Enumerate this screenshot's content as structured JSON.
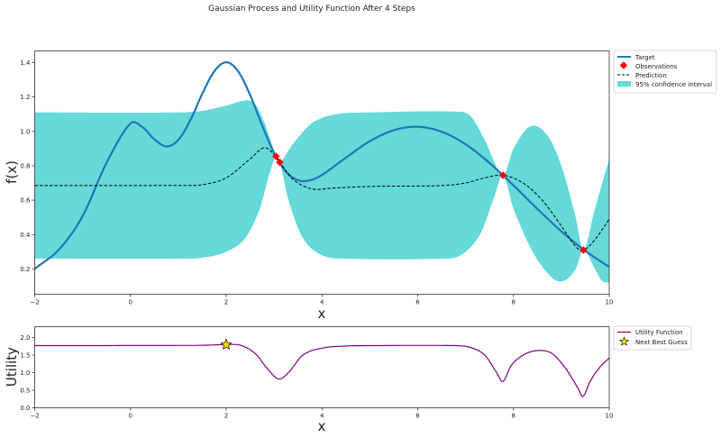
{
  "figure_title": "Gaussian Process and Utility Function After 4 Steps",
  "colors": {
    "target": "#1f77b4",
    "observations": "#ff0000",
    "prediction": "#000000",
    "confidence": "#66d9d9",
    "utility": "#800080",
    "next_guess": "#ffd700"
  },
  "chart_data": [
    {
      "type": "line",
      "title": "",
      "xlabel": "x",
      "ylabel": "f(x)",
      "xlim": [
        -2,
        10
      ],
      "ylim": [
        0.053,
        1.468
      ],
      "xticks": [
        -2,
        0,
        2,
        4,
        6,
        8,
        10
      ],
      "yticks": [
        0.2,
        0.4,
        0.6,
        0.8,
        1.0,
        1.2,
        1.4
      ],
      "ytick_labels": [
        "0.2",
        "0.4",
        "0.6",
        "0.8",
        "1.0",
        "1.2",
        "1.4"
      ],
      "grid": false,
      "legend_placement": "outside-top-right",
      "legend": [
        "Target",
        "Observations",
        "Prediction",
        "95% confidence interval"
      ],
      "target": {
        "x": [
          -2,
          -1.5,
          -1,
          -0.5,
          0,
          0.25,
          0.5,
          0.75,
          1,
          1.25,
          1.5,
          1.75,
          2,
          2.25,
          2.5,
          2.75,
          3,
          3.25,
          3.5,
          3.75,
          4,
          4.5,
          5,
          5.5,
          6,
          6.5,
          7,
          7.5,
          8,
          8.5,
          9,
          9.5,
          10
        ],
        "y": [
          0.202,
          0.311,
          0.507,
          0.817,
          1.046,
          1.025,
          0.954,
          0.913,
          0.95,
          1.065,
          1.219,
          1.349,
          1.402,
          1.349,
          1.211,
          1.035,
          0.875,
          0.766,
          0.716,
          0.716,
          0.747,
          0.847,
          0.943,
          1.007,
          1.027,
          0.998,
          0.925,
          0.816,
          0.686,
          0.549,
          0.419,
          0.305,
          0.212
        ]
      },
      "observations": {
        "x": [
          3.04,
          3.12,
          7.78,
          9.46
        ],
        "y": [
          0.855,
          0.82,
          0.745,
          0.31
        ]
      },
      "prediction": {
        "x": [
          -2,
          1,
          1.5,
          2,
          2.5,
          2.8,
          3.04,
          3.12,
          3.4,
          3.8,
          4.2,
          5,
          6.5,
          7,
          7.4,
          7.78,
          8.2,
          8.6,
          9.0,
          9.3,
          9.46,
          9.7,
          10
        ],
        "y": [
          0.685,
          0.686,
          0.69,
          0.73,
          0.84,
          0.905,
          0.855,
          0.82,
          0.72,
          0.665,
          0.67,
          0.68,
          0.685,
          0.7,
          0.73,
          0.745,
          0.7,
          0.6,
          0.45,
          0.33,
          0.31,
          0.37,
          0.49
        ]
      },
      "confidence_upper": {
        "x": [
          -2,
          1,
          1.5,
          2,
          2.4,
          2.6,
          2.8,
          3.04,
          3.12,
          3.4,
          3.8,
          4.3,
          5,
          6.8,
          7.1,
          7.4,
          7.78,
          8.0,
          8.35,
          8.7,
          9.0,
          9.3,
          9.46,
          9.7,
          10
        ],
        "y": [
          1.11,
          1.11,
          1.12,
          1.15,
          1.18,
          1.16,
          1.05,
          0.855,
          0.82,
          0.93,
          1.05,
          1.1,
          1.11,
          1.115,
          1.09,
          0.95,
          0.745,
          0.9,
          1.03,
          0.98,
          0.8,
          0.5,
          0.31,
          0.55,
          0.84
        ]
      },
      "confidence_lower": {
        "x": [
          -2,
          1,
          1.5,
          2,
          2.4,
          2.7,
          2.9,
          3.04,
          3.12,
          3.3,
          3.6,
          4,
          4.5,
          6.5,
          6.9,
          7.3,
          7.6,
          7.78,
          8.0,
          8.4,
          8.8,
          9.05,
          9.3,
          9.46,
          9.7,
          9.85,
          10
        ],
        "y": [
          0.26,
          0.26,
          0.265,
          0.3,
          0.38,
          0.55,
          0.75,
          0.855,
          0.82,
          0.6,
          0.38,
          0.28,
          0.26,
          0.26,
          0.28,
          0.4,
          0.62,
          0.745,
          0.55,
          0.3,
          0.15,
          0.13,
          0.2,
          0.31,
          0.2,
          0.13,
          0.12
        ]
      }
    },
    {
      "type": "line",
      "title": "",
      "xlabel": "x",
      "ylabel": "Utility",
      "xlim": [
        -2,
        10
      ],
      "ylim": [
        0,
        2.31
      ],
      "xticks": [
        -2,
        0,
        2,
        4,
        6,
        8,
        10
      ],
      "yticks": [
        0,
        0.5,
        1.0,
        1.5,
        2.0
      ],
      "ytick_labels": [
        "0.0",
        "0.5",
        "1.0",
        "1.5",
        "2.0"
      ],
      "grid": false,
      "legend_placement": "outside-top-right",
      "legend": [
        "Utility Function",
        "Next Best Guess"
      ],
      "utility": {
        "x": [
          -2,
          1,
          1.5,
          2,
          2.3,
          2.6,
          2.9,
          3.1,
          3.3,
          3.6,
          4,
          4.5,
          5,
          6.8,
          7.1,
          7.4,
          7.65,
          7.78,
          7.95,
          8.2,
          8.5,
          8.8,
          9.1,
          9.35,
          9.45,
          9.6,
          9.8,
          10
        ],
        "y": [
          1.77,
          1.775,
          1.78,
          1.8,
          1.78,
          1.55,
          1.05,
          0.82,
          1.0,
          1.5,
          1.7,
          1.76,
          1.77,
          1.77,
          1.72,
          1.5,
          1.0,
          0.75,
          1.2,
          1.5,
          1.63,
          1.55,
          1.1,
          0.55,
          0.32,
          0.75,
          1.15,
          1.42
        ]
      },
      "next_best_guess": {
        "x": 2.0,
        "y": 1.8
      }
    }
  ]
}
